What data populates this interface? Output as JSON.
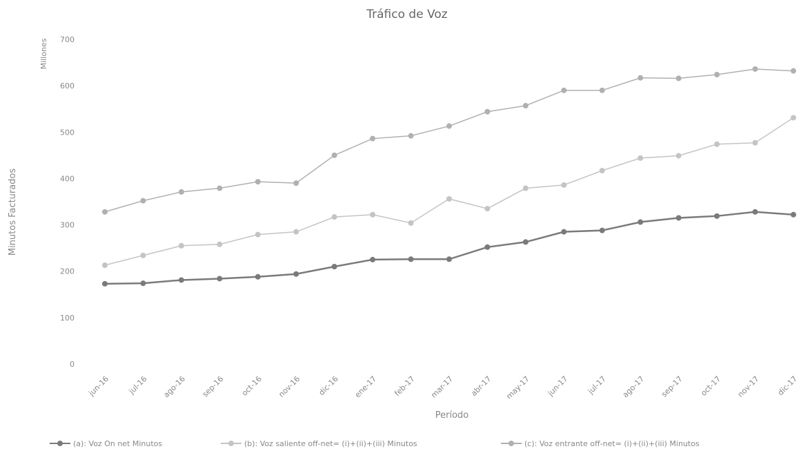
{
  "chart_data": {
    "type": "line",
    "title": "Tráfico de Voz",
    "y_label": "Minutos Facturados",
    "y_unit": "Millones",
    "x_label": "Período",
    "categories": [
      "jun-16",
      "jul-16",
      "ago-16",
      "sep-16",
      "oct-16",
      "nov-16",
      "dic-16",
      "ene-17",
      "feb-17",
      "mar-17",
      "abr-17",
      "may-17",
      "jun-17",
      "jul-17",
      "ago-17",
      "sep-17",
      "oct-17",
      "nov-17",
      "dic-17"
    ],
    "series": [
      {
        "name": "(a): Voz On net Minutos",
        "color": "#7a7a7a",
        "values": [
          173,
          174,
          181,
          184,
          188,
          194,
          210,
          225,
          226,
          226,
          252,
          263,
          285,
          288,
          306,
          315,
          319,
          328,
          322
        ]
      },
      {
        "name": "(b): Voz saliente off-net= (i)+(ii)+(iii) Minutos",
        "color": "#c4c4c4",
        "values": [
          213,
          234,
          255,
          258,
          279,
          285,
          317,
          322,
          304,
          356,
          335,
          379,
          386,
          417,
          444,
          449,
          474,
          477,
          531
        ]
      },
      {
        "name": "(c): Voz entrante off-net= (i)+(ii)+(iii) Minutos",
        "color": "#b0b0b0",
        "values": [
          328,
          352,
          371,
          379,
          393,
          390,
          450,
          486,
          492,
          513,
          544,
          557,
          590,
          590,
          617,
          616,
          624,
          636,
          632
        ]
      }
    ],
    "ylim": [
      0,
      700
    ],
    "yticks": [
      0,
      100,
      200,
      300,
      400,
      500,
      600,
      700
    ],
    "grid": false,
    "legend": "bottom"
  }
}
